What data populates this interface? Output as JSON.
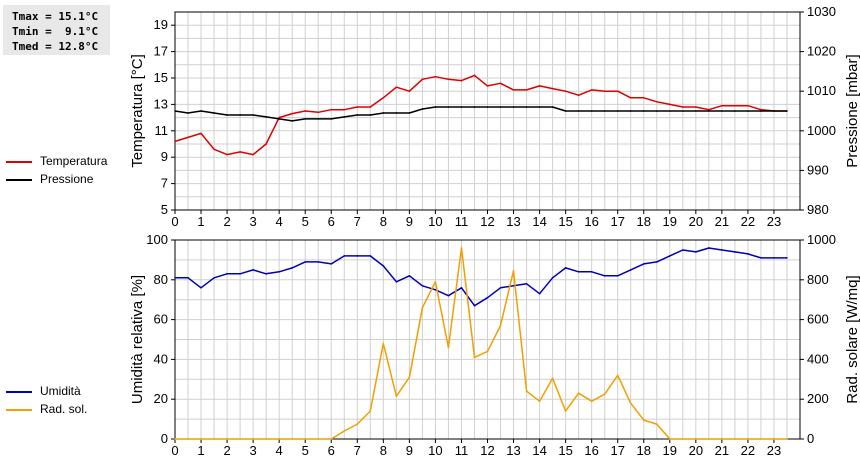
{
  "stats": {
    "tmax": "Tmax = 15.1°C",
    "tmin": "Tmin =  9.1°C",
    "tmed": "Tmed = 12.8°C"
  },
  "colors": {
    "temperature": "#dd0000",
    "pressure": "#000000",
    "humidity": "#0000bb",
    "radiation": "#f0a000",
    "grid": "#d0d0d0"
  },
  "chart_data": [
    {
      "type": "line",
      "x": [
        0,
        0.5,
        1,
        1.5,
        2,
        2.5,
        3,
        3.5,
        4,
        4.5,
        5,
        5.5,
        6,
        6.5,
        7,
        7.5,
        8,
        8.5,
        9,
        9.5,
        10,
        10.5,
        11,
        11.5,
        12,
        12.5,
        13,
        13.5,
        14,
        14.5,
        15,
        15.5,
        16,
        16.5,
        17,
        17.5,
        18,
        18.5,
        19,
        19.5,
        20,
        20.5,
        21,
        21.5,
        22,
        22.5,
        23,
        23.5
      ],
      "xticks": [
        "0",
        "1",
        "2",
        "3",
        "4",
        "5",
        "6",
        "7",
        "8",
        "9",
        "10",
        "11",
        "12",
        "13",
        "14",
        "15",
        "16",
        "17",
        "18",
        "19",
        "20",
        "21",
        "22",
        "23"
      ],
      "xlim": [
        0,
        24
      ],
      "ylabel": "Temperatura [°C]",
      "ylim": [
        5,
        20
      ],
      "yticks": [
        "5",
        "7",
        "9",
        "11",
        "13",
        "15",
        "17",
        "19"
      ],
      "y2label": "Pressione [mbar]",
      "y2lim": [
        980,
        1030
      ],
      "y2ticks": [
        "980",
        "990",
        "1000",
        "1010",
        "1020",
        "1030"
      ],
      "legend_position": "left",
      "series": [
        {
          "name": "Temperatura",
          "axis": "left",
          "values": [
            10.2,
            10.5,
            10.8,
            9.6,
            9.2,
            9.4,
            9.2,
            10.0,
            12.0,
            12.3,
            12.5,
            12.4,
            12.6,
            12.6,
            12.8,
            12.8,
            13.5,
            14.3,
            14.0,
            14.9,
            15.1,
            14.9,
            14.8,
            15.2,
            14.4,
            14.6,
            14.1,
            14.1,
            14.4,
            14.2,
            14.0,
            13.7,
            14.1,
            14.0,
            14.0,
            13.5,
            13.5,
            13.2,
            13.0,
            12.8,
            12.8,
            12.6,
            12.9,
            12.9,
            12.9,
            12.6,
            12.5,
            12.5
          ]
        },
        {
          "name": "Pressione",
          "axis": "right",
          "values": [
            1005,
            1004.5,
            1005,
            1004.5,
            1004,
            1004,
            1004,
            1003.5,
            1003,
            1002.5,
            1003,
            1003,
            1003,
            1003.5,
            1004,
            1004,
            1004.5,
            1004.5,
            1004.5,
            1005.5,
            1006,
            1006,
            1006,
            1006,
            1006,
            1006,
            1006,
            1006,
            1006,
            1006,
            1005,
            1005,
            1005,
            1005,
            1005,
            1005,
            1005,
            1005,
            1005,
            1005,
            1005,
            1005,
            1005,
            1005,
            1005,
            1005,
            1005,
            1005
          ]
        }
      ]
    },
    {
      "type": "line",
      "x": [
        0,
        0.5,
        1,
        1.5,
        2,
        2.5,
        3,
        3.5,
        4,
        4.5,
        5,
        5.5,
        6,
        6.5,
        7,
        7.5,
        8,
        8.5,
        9,
        9.5,
        10,
        10.5,
        11,
        11.5,
        12,
        12.5,
        13,
        13.5,
        14,
        14.5,
        15,
        15.5,
        16,
        16.5,
        17,
        17.5,
        18,
        18.5,
        19,
        19.5,
        20,
        20.5,
        21,
        21.5,
        22,
        22.5,
        23,
        23.5
      ],
      "xticks": [
        "0",
        "1",
        "2",
        "3",
        "4",
        "5",
        "6",
        "7",
        "8",
        "9",
        "10",
        "11",
        "12",
        "13",
        "14",
        "15",
        "16",
        "17",
        "18",
        "19",
        "20",
        "21",
        "22",
        "23"
      ],
      "xlim": [
        0,
        24
      ],
      "ylabel": "Umidità relativa [%]",
      "ylim": [
        0,
        100
      ],
      "yticks": [
        "0",
        "20",
        "40",
        "60",
        "80",
        "100"
      ],
      "y2label": "Rad. solare [W/mq]",
      "y2lim": [
        0,
        1000
      ],
      "y2ticks": [
        "0",
        "200",
        "400",
        "600",
        "800",
        "1000"
      ],
      "legend_position": "left",
      "series": [
        {
          "name": "Umidità",
          "axis": "left",
          "values": [
            81,
            81,
            76,
            81,
            83,
            83,
            85,
            83,
            84,
            86,
            89,
            89,
            88,
            92,
            92,
            92,
            87,
            79,
            82,
            77,
            75,
            72,
            76,
            67,
            71,
            76,
            77,
            78,
            73,
            81,
            86,
            84,
            84,
            82,
            82,
            85,
            88,
            89,
            92,
            95,
            94,
            96,
            95,
            94,
            93,
            91,
            91,
            91
          ]
        },
        {
          "name": "Rad. sol.",
          "axis": "right",
          "values": [
            0,
            0,
            0,
            0,
            0,
            0,
            0,
            0,
            0,
            0,
            0,
            0,
            0,
            40,
            75,
            140,
            480,
            215,
            310,
            660,
            790,
            460,
            960,
            410,
            440,
            570,
            845,
            240,
            190,
            305,
            140,
            230,
            190,
            225,
            320,
            180,
            95,
            75,
            0,
            0,
            0,
            0,
            0,
            0,
            0,
            0,
            0,
            0
          ]
        }
      ]
    }
  ]
}
